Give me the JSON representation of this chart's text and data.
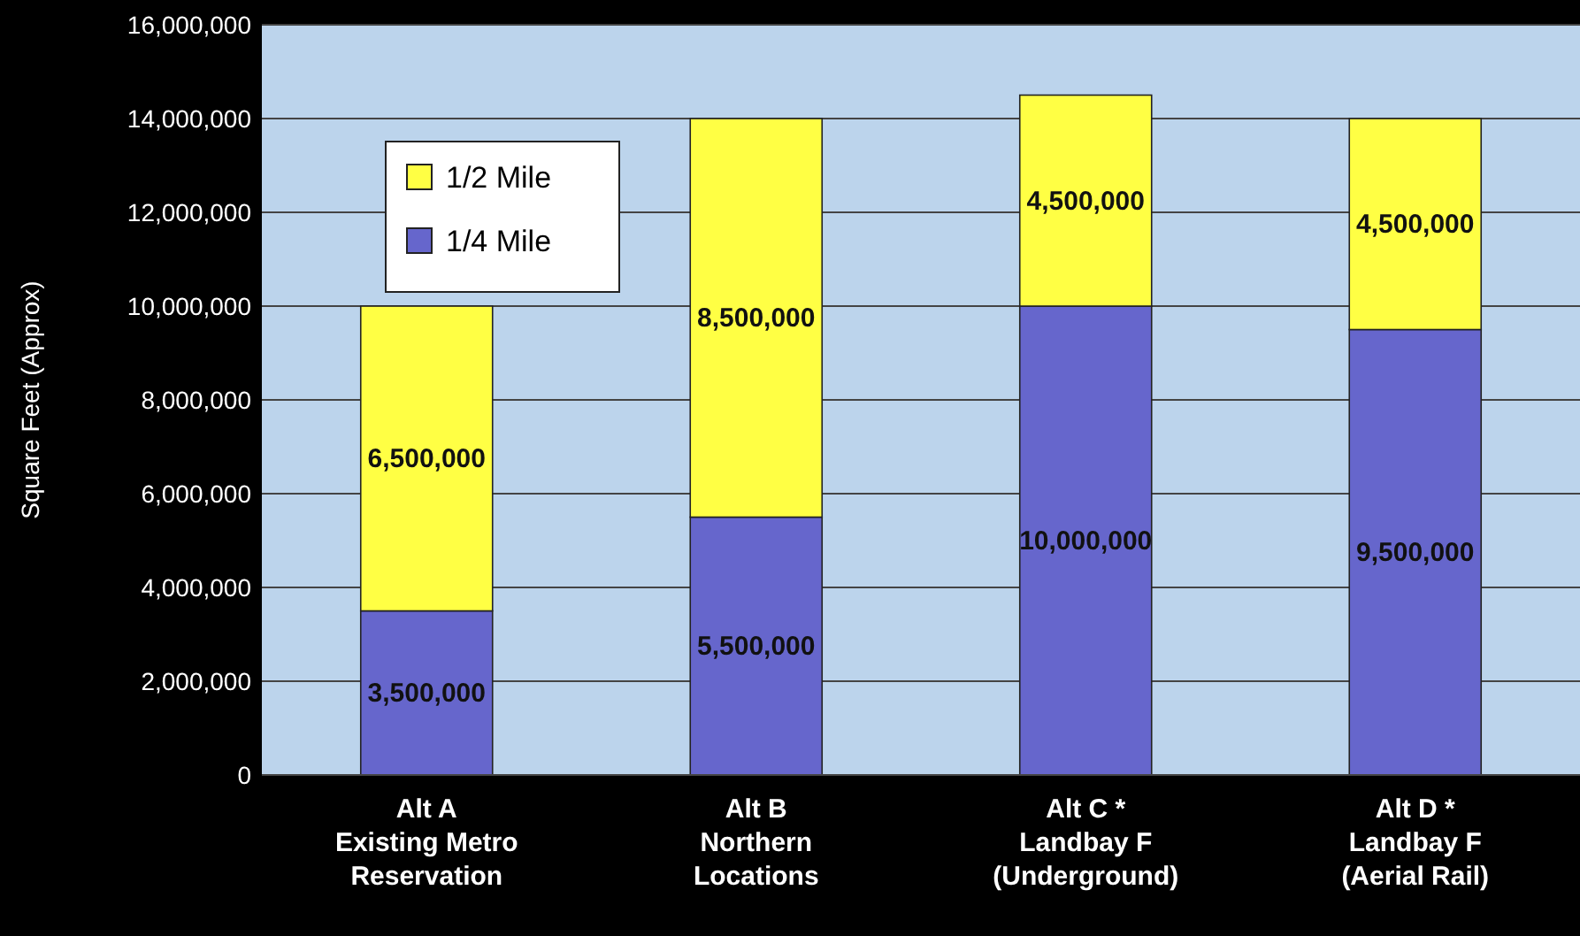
{
  "chart_data": {
    "type": "bar",
    "stacked": true,
    "ylabel": "Square Feet (Approx)",
    "categories": [
      "Alt A\nExisting Metro\nReservation",
      "Alt B\nNorthern\nLocations",
      "Alt C *\nLandbay F\n(Underground)",
      "Alt D *\nLandbay F\n(Aerial Rail)"
    ],
    "series": [
      {
        "name": "1/4 Mile",
        "color": "#6666cc",
        "values": [
          3500000,
          5500000,
          10000000,
          9500000
        ],
        "value_labels": [
          "3,500,000",
          "5,500,000",
          "10,000,000",
          "9,500,000"
        ]
      },
      {
        "name": "1/2 Mile",
        "color": "#ffff44",
        "values": [
          6500000,
          8500000,
          4500000,
          4500000
        ],
        "value_labels": [
          "6,500,000",
          "8,500,000",
          "4,500,000",
          "4,500,000"
        ]
      }
    ],
    "ylim": [
      0,
      16000000
    ],
    "yticks": [
      {
        "value": 0,
        "label": "0"
      },
      {
        "value": 2000000,
        "label": "2,000,000"
      },
      {
        "value": 4000000,
        "label": "4,000,000"
      },
      {
        "value": 6000000,
        "label": "6,000,000"
      },
      {
        "value": 8000000,
        "label": "8,000,000"
      },
      {
        "value": 10000000,
        "label": "10,000,000"
      },
      {
        "value": 12000000,
        "label": "12,000,000"
      },
      {
        "value": 14000000,
        "label": "14,000,000"
      },
      {
        "value": 16000000,
        "label": "16,000,000"
      }
    ],
    "grid": "y",
    "legend": "top left"
  }
}
